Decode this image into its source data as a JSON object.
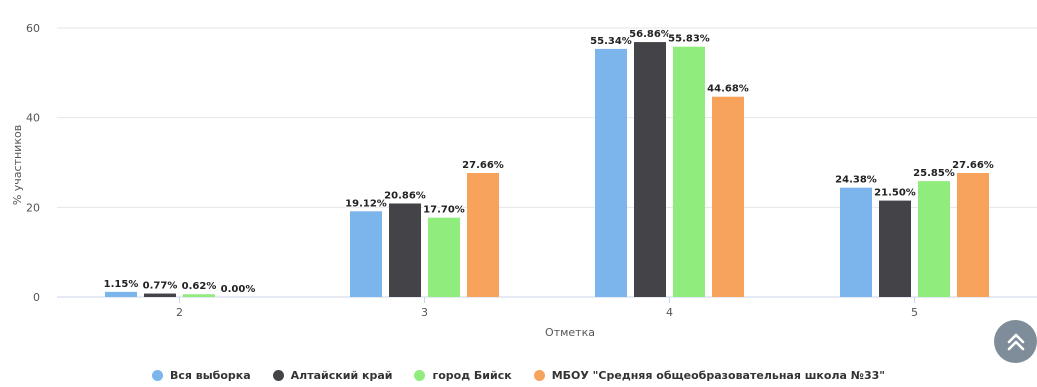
{
  "chart_data": {
    "type": "bar",
    "categories": [
      "2",
      "3",
      "4",
      "5"
    ],
    "series": [
      {
        "name": "Вся выборка",
        "color": "#7cb5ec",
        "values": [
          1.15,
          19.12,
          55.34,
          24.38
        ],
        "labels": [
          "1.15%",
          "19.12%",
          "55.34%",
          "24.38%"
        ]
      },
      {
        "name": "Алтайский край",
        "color": "#434348",
        "values": [
          0.77,
          20.86,
          56.86,
          21.5
        ],
        "labels": [
          "0.77%",
          "20.86%",
          "56.86%",
          "21.50%"
        ]
      },
      {
        "name": "город Бийск",
        "color": "#90ed7d",
        "values": [
          0.62,
          17.7,
          55.83,
          25.85
        ],
        "labels": [
          "0.62%",
          "17.70%",
          "55.83%",
          "25.85%"
        ]
      },
      {
        "name": "МБОУ \"Средняя общеобразовательная школа №33\"",
        "color": "#f7a35c",
        "values": [
          0.0,
          27.66,
          44.68,
          27.66
        ],
        "labels": [
          "0.00%",
          "27.66%",
          "44.68%",
          "27.66%"
        ]
      }
    ],
    "xlabel": "Отметка",
    "ylabel": "% участников",
    "ylim": [
      0,
      60
    ],
    "yticks": [
      "0",
      "20",
      "40",
      "60"
    ],
    "grid": true,
    "legend_position": "bottom"
  },
  "ui": {
    "scroll_top_icon": "double-chevron-up-icon",
    "scroll_top_color": "#7f8c99"
  }
}
